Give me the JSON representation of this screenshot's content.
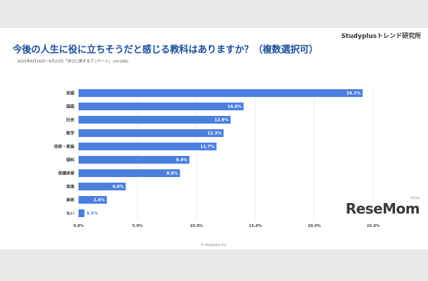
{
  "header": {
    "brand": "Studyplusトレンド研究所",
    "title": "今後の人生に役に立ちそうだと感じる教科はありますか？（複数選択可）",
    "subtitle": "2025年6月16日～6月23日「学びに関するアンケート」(n=298)"
  },
  "footer": {
    "copyright": "© Studyplus Inc."
  },
  "logo": {
    "text": "ReseMom",
    "furigana": "リセマム"
  },
  "colors": {
    "bar": "#4a7fe0",
    "title": "#1b4f9a",
    "grid": "#d8d8d8"
  },
  "chart_data": {
    "type": "bar",
    "orientation": "horizontal",
    "categories": [
      "英語",
      "国語",
      "社会",
      "数学",
      "技術・家庭",
      "理科",
      "保健体育",
      "音楽",
      "美術",
      "ない"
    ],
    "values": [
      24.1,
      14.0,
      12.9,
      12.3,
      11.7,
      9.4,
      8.6,
      4.0,
      2.4,
      0.5
    ],
    "value_labels": [
      "24.1%",
      "14.0%",
      "12.9%",
      "12.3%",
      "11.7%",
      "9.4%",
      "8.6%",
      "4.0%",
      "2.4%",
      "0.5%"
    ],
    "xlim": [
      0,
      25
    ],
    "x_ticks": [
      0,
      5,
      10,
      15,
      20,
      25
    ],
    "x_tick_labels": [
      "0.0%",
      "5.0%",
      "10.0%",
      "15.0%",
      "20.0%",
      "25.0%"
    ],
    "grid": true,
    "xlabel": "",
    "ylabel": ""
  }
}
